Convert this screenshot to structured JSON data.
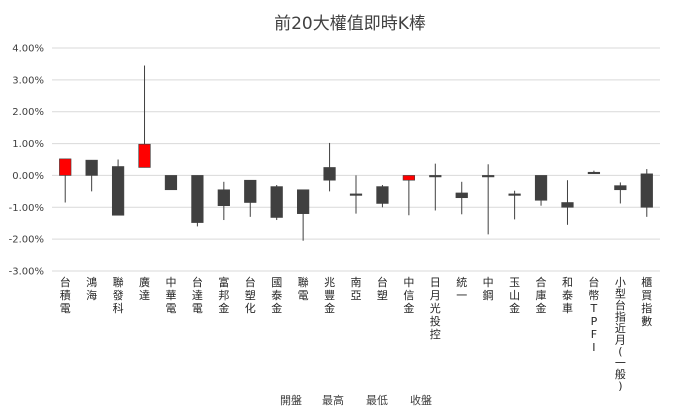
{
  "chart_data": {
    "type": "candlestick",
    "title": "前20大權值即時K棒",
    "ylim": [
      -3.0,
      4.0
    ],
    "y_ticks": [
      "4.00%",
      "3.00%",
      "2.00%",
      "1.00%",
      "0.00%",
      "-1.00%",
      "-2.00%",
      "-3.00%"
    ],
    "legend": [
      "開盤",
      "最高",
      "最低",
      "收盤"
    ],
    "colors": {
      "up": "#ff0000",
      "down": "#404040",
      "wick": "#404040",
      "gridline": "#d9d9d9"
    },
    "categories": [
      "台積電",
      "鴻海",
      "聯發科",
      "廣達",
      "中華電",
      "台達電",
      "富邦金",
      "台塑化",
      "國泰金",
      "聯電",
      "兆豐金",
      "南亞",
      "台塑",
      "中信金",
      "日月光投控",
      "統一",
      "中鋼",
      "玉山金",
      "合庫金",
      "和泰車",
      "台幣TPFI",
      "小型台指近月(一般)",
      "櫃買指數"
    ],
    "series": [
      {
        "name": "台積電",
        "open": 0.0,
        "high": 0.52,
        "low": -0.85,
        "close": 0.52
      },
      {
        "name": "鴻海",
        "open": 0.48,
        "high": 0.48,
        "low": -0.5,
        "close": 0.0
      },
      {
        "name": "聯發科",
        "open": 0.28,
        "high": 0.5,
        "low": -1.25,
        "close": -1.25
      },
      {
        "name": "廣達",
        "open": 0.25,
        "high": 3.45,
        "low": 0.25,
        "close": 0.98
      },
      {
        "name": "中華電",
        "open": 0.0,
        "high": 0.0,
        "low": -0.45,
        "close": -0.45
      },
      {
        "name": "台達電",
        "open": 0.0,
        "high": 0.0,
        "low": -1.6,
        "close": -1.48
      },
      {
        "name": "富邦金",
        "open": -0.45,
        "high": -0.2,
        "low": -1.4,
        "close": -0.95
      },
      {
        "name": "台塑化",
        "open": -0.15,
        "high": -0.15,
        "low": -1.3,
        "close": -0.85
      },
      {
        "name": "國泰金",
        "open": -0.35,
        "high": -0.3,
        "low": -1.4,
        "close": -1.32
      },
      {
        "name": "聯電",
        "open": -0.45,
        "high": -0.45,
        "low": -2.05,
        "close": -1.2
      },
      {
        "name": "兆豐金",
        "open": 0.25,
        "high": 1.02,
        "low": -0.5,
        "close": -0.15
      },
      {
        "name": "南亞",
        "open": -0.58,
        "high": 0.0,
        "low": -1.2,
        "close": -0.62
      },
      {
        "name": "台塑",
        "open": -0.35,
        "high": -0.3,
        "low": -1.0,
        "close": -0.88
      },
      {
        "name": "中信金",
        "open": -0.15,
        "high": 0.0,
        "low": -1.25,
        "close": 0.0
      },
      {
        "name": "日月光投控",
        "open": 0.0,
        "high": 0.37,
        "low": -1.1,
        "close": -0.02
      },
      {
        "name": "統一",
        "open": -0.55,
        "high": -0.2,
        "low": -1.22,
        "close": -0.7
      },
      {
        "name": "中鋼",
        "open": 0.0,
        "high": 0.35,
        "low": -1.85,
        "close": -0.02
      },
      {
        "name": "玉山金",
        "open": -0.58,
        "high": -0.48,
        "low": -1.38,
        "close": -0.62
      },
      {
        "name": "合庫金",
        "open": 0.0,
        "high": 0.0,
        "low": -0.95,
        "close": -0.78
      },
      {
        "name": "和泰車",
        "open": -0.85,
        "high": -0.15,
        "low": -1.55,
        "close": -1.0
      },
      {
        "name": "台幣TPFI",
        "open": 0.1,
        "high": 0.15,
        "low": 0.05,
        "close": 0.07
      },
      {
        "name": "小型台指近月(一般)",
        "open": -0.32,
        "high": -0.22,
        "low": -0.88,
        "close": -0.45
      },
      {
        "name": "櫃買指數",
        "open": 0.05,
        "high": 0.2,
        "low": -1.3,
        "close": -1.0
      }
    ]
  }
}
